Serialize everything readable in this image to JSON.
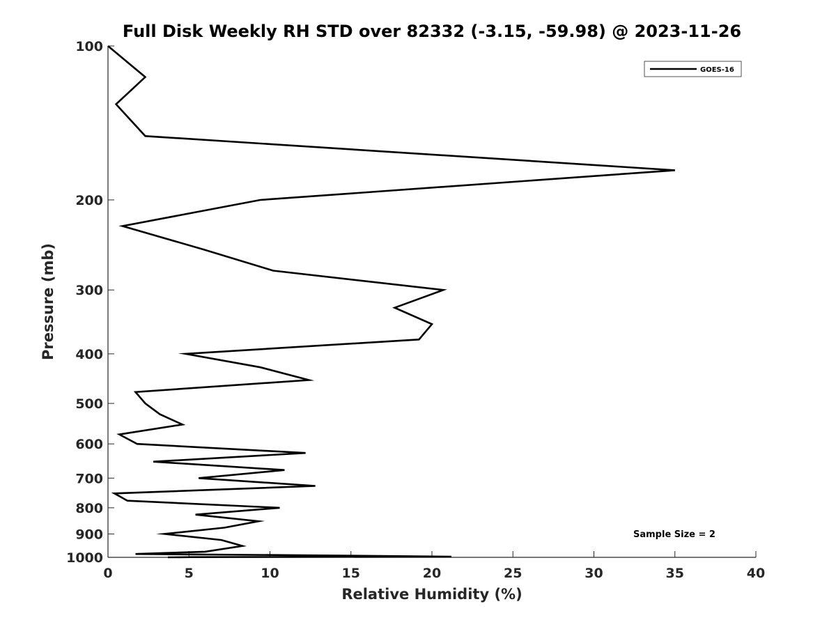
{
  "chart_data": {
    "type": "line",
    "title": "Full Disk Weekly RH STD over 82332 (-3.15, -59.98) @ 2023-11-26",
    "xlabel": "Relative Humidity (%)",
    "ylabel": "Pressure (mb)",
    "xlim": [
      0,
      40
    ],
    "ylim": [
      100,
      1000
    ],
    "y_scale": "log",
    "y_reversed": true,
    "xticks": [
      "0",
      "5",
      "10",
      "15",
      "20",
      "25",
      "30",
      "35",
      "40"
    ],
    "xtick_values": [
      0,
      5,
      10,
      15,
      20,
      25,
      30,
      35,
      40
    ],
    "yticks": [
      "100",
      "200",
      "300",
      "400",
      "500",
      "600",
      "700",
      "800",
      "900",
      "1000"
    ],
    "ytick_values": [
      100,
      200,
      300,
      400,
      500,
      600,
      700,
      800,
      900,
      1000
    ],
    "legend_position": "top-right",
    "note": "Sample Size = 2",
    "series": [
      {
        "name": "GOES-16",
        "color": "#000000",
        "x": [
          0.0,
          2.3,
          0.5,
          2.3,
          35.0,
          9.4,
          0.9,
          5.9,
          10.2,
          20.7,
          17.7,
          20.0,
          19.2,
          4.8,
          9.4,
          12.4,
          1.7,
          2.3,
          3.2,
          4.6,
          0.7,
          1.8,
          12.2,
          2.8,
          10.9,
          5.6,
          12.8,
          0.4,
          1.2,
          10.6,
          5.4,
          9.3,
          7.2,
          3.5,
          7.0,
          8.3,
          6.0,
          1.7,
          10.8,
          18.5,
          21.2,
          5.2,
          3.7
        ],
        "y": [
          100,
          115,
          130,
          150,
          175,
          200,
          225,
          250,
          275,
          300,
          325,
          350,
          375,
          400,
          425,
          450,
          475,
          500,
          525,
          550,
          575,
          600,
          625,
          650,
          675,
          700,
          725,
          750,
          775,
          800,
          825,
          850,
          875,
          900,
          925,
          950,
          975,
          985,
          990,
          995,
          997,
          999,
          1000
        ]
      }
    ]
  }
}
